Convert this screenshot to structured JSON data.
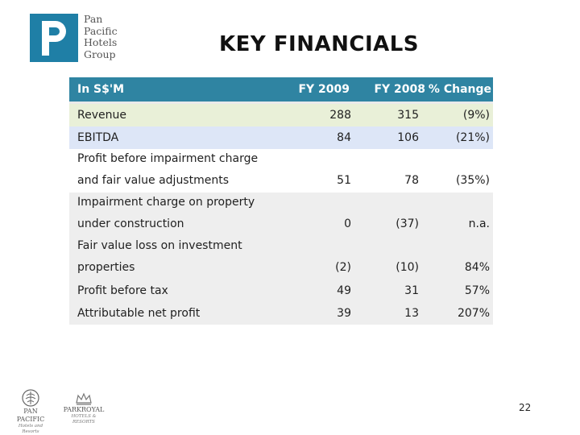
{
  "logo": {
    "mark_letter": "P",
    "lines": [
      "Pan",
      "Pacific",
      "Hotels",
      "Group"
    ]
  },
  "title": "KEY FINANCIALS",
  "table": {
    "headers": [
      "In S$'M",
      "FY 2009",
      "FY 2008",
      "% Change"
    ],
    "rows": [
      {
        "label": [
          "Revenue"
        ],
        "fy2009": "288",
        "fy2008": "315",
        "change": "(9%)"
      },
      {
        "label": [
          "EBITDA"
        ],
        "fy2009": "84",
        "fy2008": "106",
        "change": "(21%)"
      },
      {
        "label": [
          "Profit before impairment charge",
          "and fair value adjustments"
        ],
        "fy2009": "51",
        "fy2008": "78",
        "change": "(35%)"
      },
      {
        "label": [
          "Impairment charge on property",
          "under construction"
        ],
        "fy2009": "0",
        "fy2008": "(37)",
        "change": "n.a."
      },
      {
        "label": [
          "Fair value loss on investment",
          "properties"
        ],
        "fy2009": "(2)",
        "fy2008": "(10)",
        "change": "84%"
      },
      {
        "label": [
          "Profit before tax"
        ],
        "fy2009": "49",
        "fy2008": "31",
        "change": "57%"
      },
      {
        "label": [
          "Attributable net profit"
        ],
        "fy2009": "39",
        "fy2008": "13",
        "change": "207%"
      }
    ]
  },
  "footer_logos": [
    {
      "name": "PAN PACIFIC",
      "sub": "Hotels and Resorts",
      "icon": "pan-pacific-emblem-icon"
    },
    {
      "name": "PARKROYAL",
      "sub": "HOTELS & RESORTS",
      "icon": "parkroyal-crown-icon"
    }
  ],
  "page_number": "22",
  "colors": {
    "header_bg": "#2f84a2",
    "row_green": "#e9f0d8",
    "row_blue": "#dde6f7",
    "row_grey": "#eeeeee",
    "logo_blue": "#1f7fa6"
  }
}
